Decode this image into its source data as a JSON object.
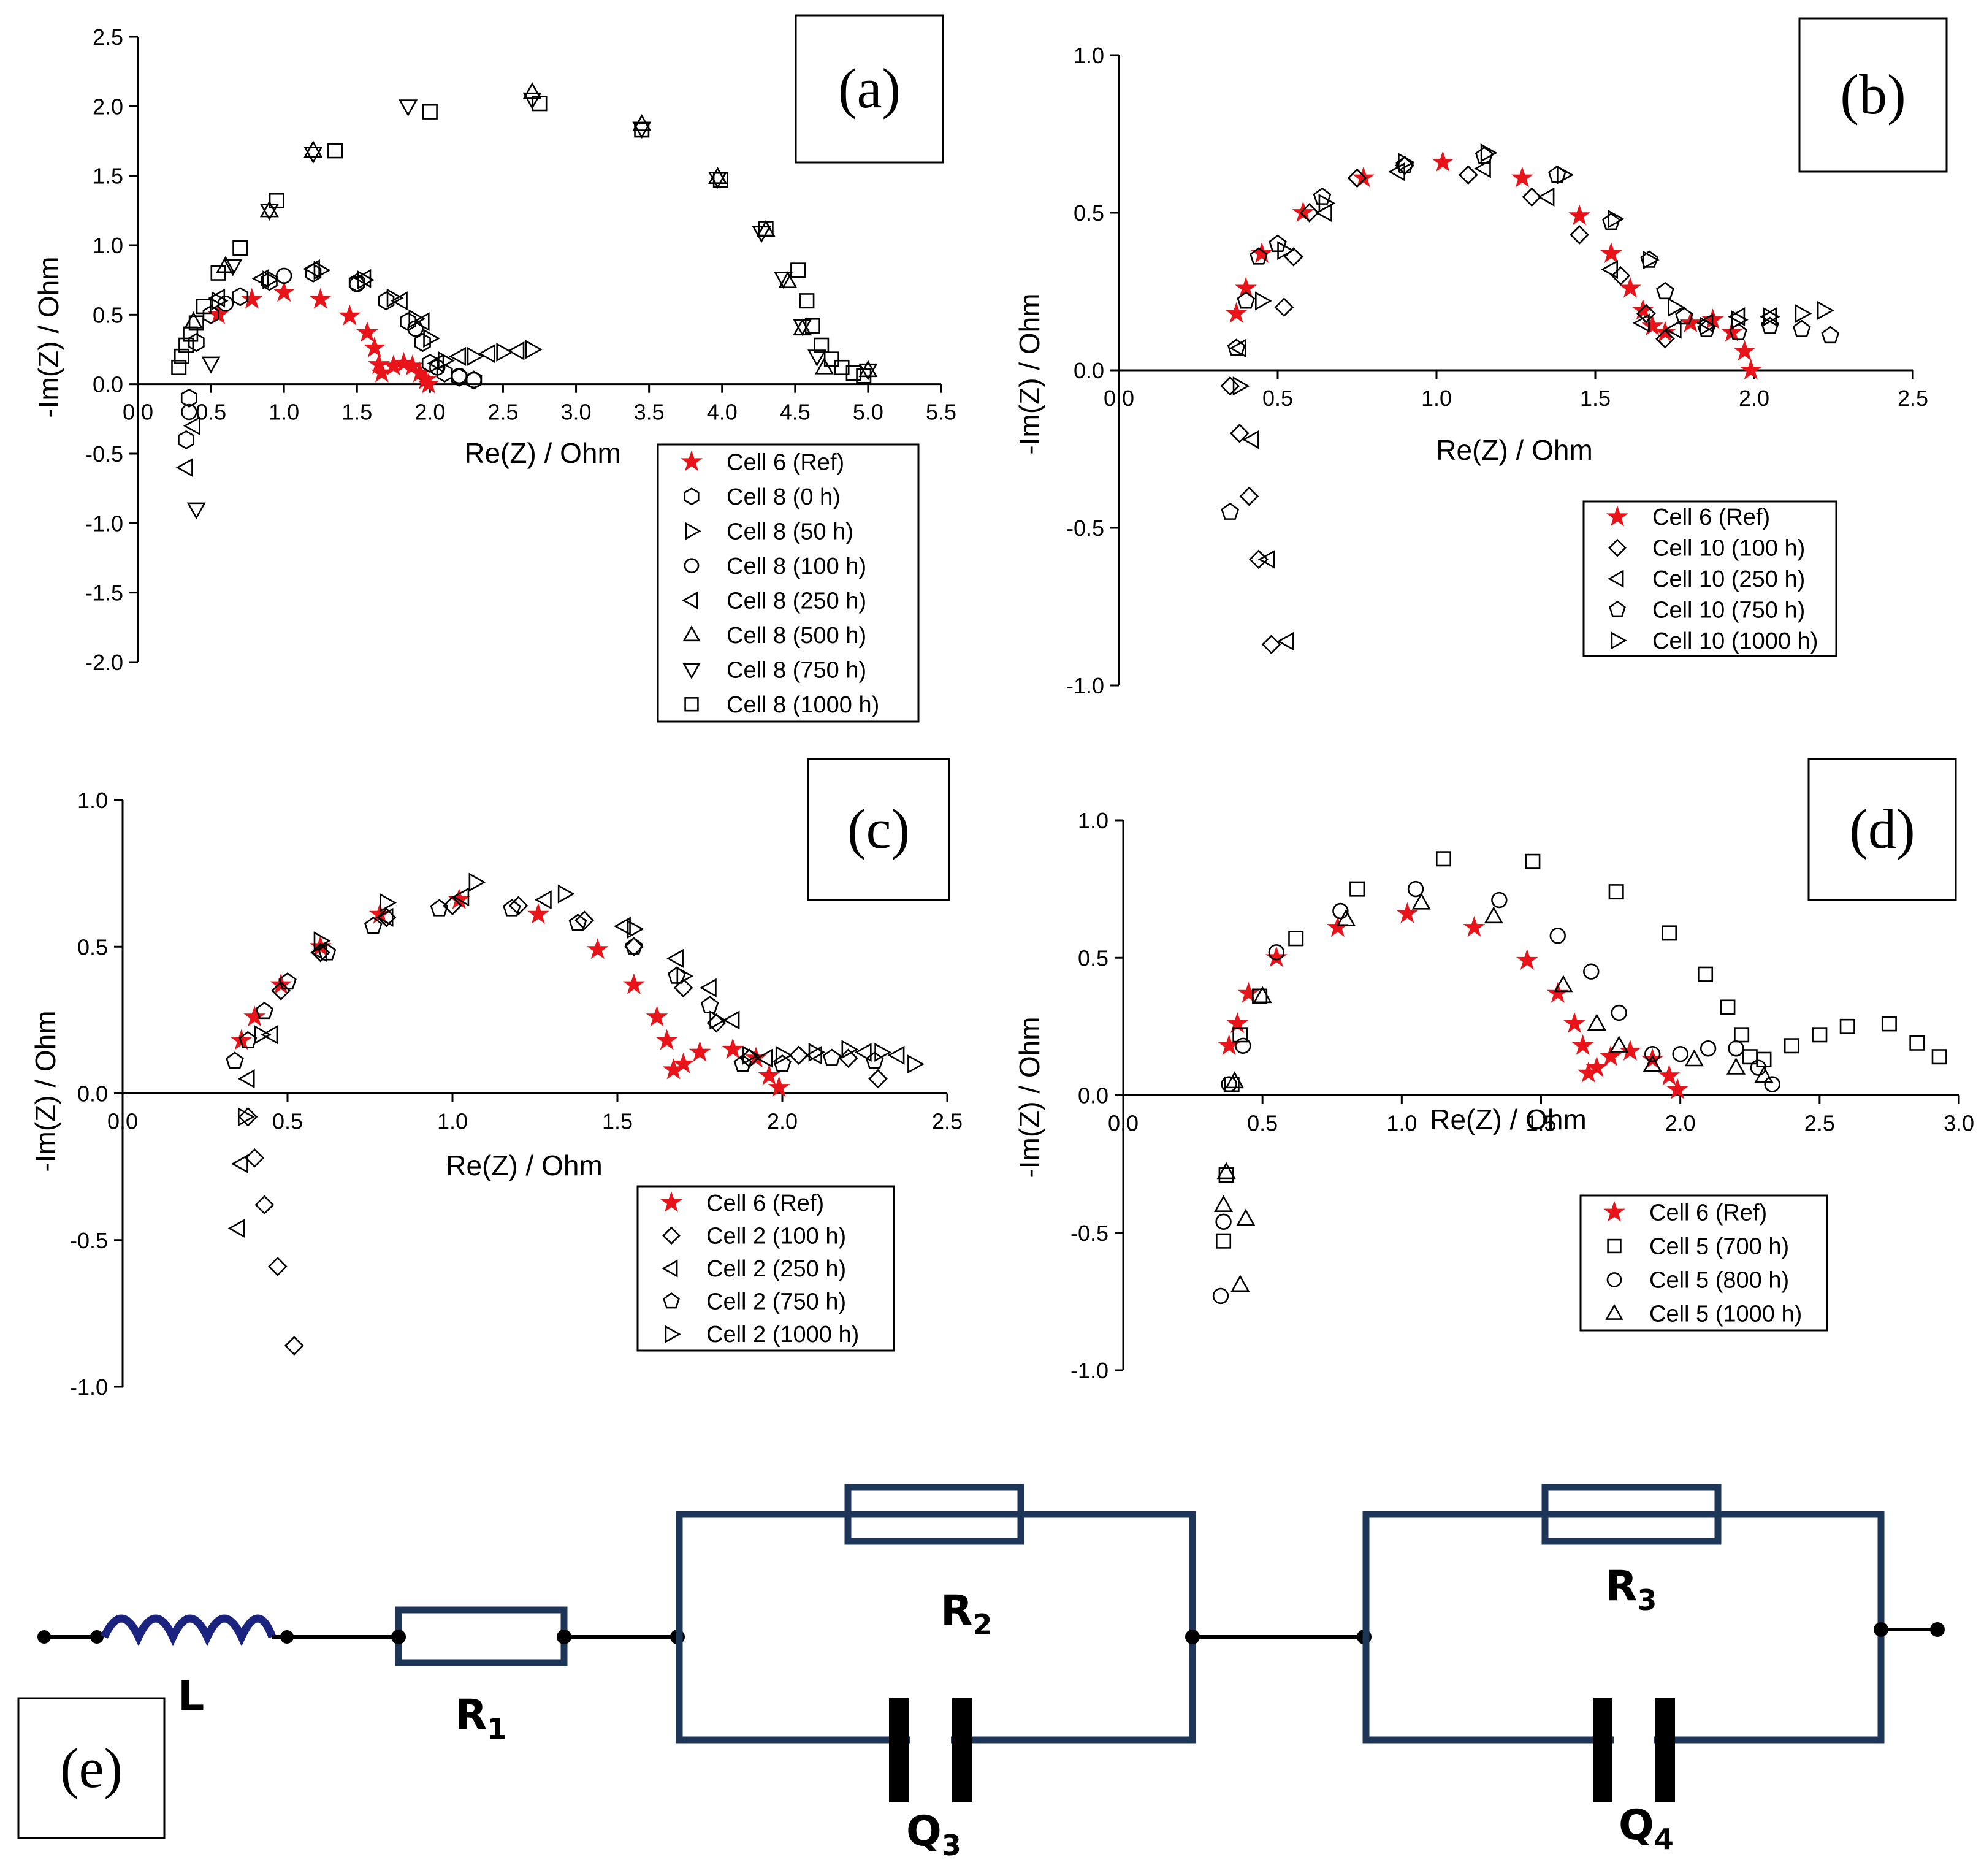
{
  "panels": {
    "a": {
      "label": "(a)",
      "xlabel": "Re(Z) / Ohm",
      "ylabel": "-Im(Z) / Ohm",
      "xticks": [
        "0.0",
        "0.5",
        "1.0",
        "1.5",
        "2.0",
        "2.5",
        "3.0",
        "3.5",
        "4.0",
        "4.5",
        "5.0",
        "5.5"
      ],
      "yticks": [
        "2.5",
        "2.0",
        "1.5",
        "1.0",
        "0.5",
        "0.0",
        "-0.5",
        "-1.0",
        "-1.5",
        "-2.0"
      ],
      "legend": [
        "Cell 6 (Ref)",
        "Cell 8 (0 h)",
        "Cell 8 (50 h)",
        "Cell 8 (100 h)",
        "Cell 8 (250 h)",
        "Cell 8 (500 h)",
        "Cell 8 (750 h)",
        "Cell 8 (1000 h)"
      ]
    },
    "b": {
      "label": "(b)",
      "xlabel": "Re(Z) / Ohm",
      "ylabel": "-Im(Z) / Ohm",
      "xticks": [
        "0.0",
        "0.5",
        "1.0",
        "1.5",
        "2.0",
        "2.5"
      ],
      "yticks": [
        "1.0",
        "0.5",
        "0.0",
        "-0.5",
        "-1.0"
      ],
      "legend": [
        "Cell 6 (Ref)",
        "Cell 10 (100 h)",
        "Cell 10 (250 h)",
        "Cell 10 (750 h)",
        "Cell 10 (1000 h)"
      ]
    },
    "c": {
      "label": "(c)",
      "xlabel": "Re(Z) / Ohm",
      "ylabel": "-Im(Z) / Ohm",
      "xticks": [
        "0.0",
        "0.5",
        "1.0",
        "1.5",
        "2.0",
        "2.5"
      ],
      "yticks": [
        "1.0",
        "0.5",
        "0.0",
        "-0.5",
        "-1.0"
      ],
      "legend": [
        "Cell 6 (Ref)",
        "Cell 2 (100 h)",
        "Cell 2 (250 h)",
        "Cell 2 (750 h)",
        "Cell 2 (1000 h)"
      ]
    },
    "d": {
      "label": "(d)",
      "xlabel": "Re(Z) / Ohm",
      "ylabel": "-Im(Z) / Ohm",
      "xticks": [
        "0.0",
        "0.5",
        "1.0",
        "1.5",
        "2.0",
        "2.5",
        "3.0"
      ],
      "yticks": [
        "1.0",
        "0.5",
        "0.0",
        "-0.5",
        "-1.0"
      ],
      "legend": [
        "Cell 6 (Ref)",
        "Cell 5 (700 h)",
        "Cell 5 (800 h)",
        "Cell 5 (1000 h)"
      ]
    }
  },
  "circuit": {
    "label": "(e)",
    "L": "L",
    "R": "R",
    "Q": "Q",
    "sub1": "1",
    "sub2": "2",
    "sub3": "3",
    "sub4": "4"
  },
  "colors": {
    "reference": "#e8141a",
    "circuit_box": "#1d3557"
  },
  "chart_data": [
    {
      "panel": "a",
      "type": "scatter",
      "xlabel": "Re(Z) / Ohm",
      "ylabel": "-Im(Z) / Ohm",
      "xlim": [
        0,
        5.5
      ],
      "ylim": [
        -2.0,
        2.5
      ],
      "series": [
        {
          "name": "Cell 6 (Ref)",
          "marker": "star",
          "x": [
            0.55,
            0.78,
            1.0,
            1.25,
            1.45,
            1.57,
            1.62,
            1.65,
            1.67,
            1.75,
            1.82,
            1.88,
            1.93,
            1.97,
            1.99
          ],
          "y": [
            0.5,
            0.61,
            0.66,
            0.61,
            0.49,
            0.37,
            0.26,
            0.14,
            0.08,
            0.13,
            0.15,
            0.13,
            0.08,
            0.03,
            0.0
          ]
        },
        {
          "name": "Cell 8 (0 h)",
          "marker": "hexagon",
          "x": [
            0.33,
            0.35,
            0.4,
            0.5,
            0.7,
            0.9,
            1.2,
            1.5,
            1.7,
            1.85,
            1.95,
            2.0,
            2.1,
            2.2,
            2.3
          ],
          "y": [
            -0.4,
            -0.1,
            0.3,
            0.5,
            0.63,
            0.74,
            0.8,
            0.73,
            0.6,
            0.45,
            0.3,
            0.15,
            0.08,
            0.05,
            0.03
          ]
        },
        {
          "name": "Cell 8 (50 h)",
          "marker": "tri-right",
          "x": [
            0.55,
            0.9,
            1.25,
            1.55,
            1.75,
            1.9,
            2.0,
            2.1,
            2.3,
            2.5,
            2.7
          ],
          "y": [
            0.6,
            0.75,
            0.82,
            0.75,
            0.62,
            0.47,
            0.33,
            0.17,
            0.2,
            0.23,
            0.25
          ]
        },
        {
          "name": "Cell 8 (100 h)",
          "marker": "circle",
          "x": [
            0.35,
            0.6,
            1.0,
            1.5,
            1.9,
            2.05,
            2.2,
            2.3
          ],
          "y": [
            -0.2,
            0.58,
            0.78,
            0.72,
            0.4,
            0.12,
            0.06,
            0.03
          ]
        },
        {
          "name": "Cell 8 (250 h)",
          "marker": "tri-left",
          "x": [
            0.33,
            0.38,
            0.55,
            0.85,
            1.2,
            1.55,
            1.8,
            1.95,
            2.05,
            2.2,
            2.4,
            2.6
          ],
          "y": [
            -0.6,
            -0.3,
            0.62,
            0.76,
            0.83,
            0.76,
            0.6,
            0.45,
            0.15,
            0.2,
            0.22,
            0.24
          ]
        },
        {
          "name": "Cell 8 (500 h)",
          "marker": "triangle",
          "x": [
            0.38,
            0.6,
            0.9,
            1.2,
            2.7,
            3.45,
            3.97,
            4.3,
            4.45,
            4.55,
            4.7,
            5.0
          ],
          "y": [
            0.45,
            0.85,
            1.25,
            1.68,
            2.1,
            1.87,
            1.49,
            1.11,
            0.74,
            0.4,
            0.12,
            0.1
          ]
        },
        {
          "name": "Cell 8 (750 h)",
          "marker": "tri-down",
          "x": [
            0.4,
            0.5,
            0.65,
            0.9,
            1.2,
            1.85,
            2.7,
            3.45,
            3.97,
            4.27,
            4.42,
            4.55,
            4.65,
            5.0
          ],
          "y": [
            -0.9,
            0.15,
            0.85,
            1.25,
            1.66,
            2.0,
            2.05,
            1.84,
            1.48,
            1.09,
            0.76,
            0.42,
            0.2,
            0.1
          ]
        },
        {
          "name": "Cell 8 (1000 h)",
          "marker": "square",
          "x": [
            0.28,
            0.3,
            0.33,
            0.36,
            0.4,
            0.45,
            0.55,
            0.7,
            0.95,
            1.35,
            2.0,
            2.75,
            3.45,
            3.99,
            4.3,
            4.52,
            4.58,
            4.62,
            4.68,
            4.75,
            4.82,
            4.9,
            4.97
          ],
          "y": [
            0.12,
            0.2,
            0.28,
            0.36,
            0.44,
            0.56,
            0.8,
            0.98,
            1.32,
            1.68,
            1.96,
            2.02,
            1.83,
            1.47,
            1.12,
            0.82,
            0.6,
            0.42,
            0.28,
            0.18,
            0.12,
            0.08,
            0.06
          ]
        }
      ]
    },
    {
      "panel": "b",
      "type": "scatter",
      "xlabel": "Re(Z) / Ohm",
      "ylabel": "-Im(Z) / Ohm",
      "xlim": [
        0,
        2.5
      ],
      "ylim": [
        -1.0,
        1.0
      ],
      "series": [
        {
          "name": "Cell 6 (Ref)",
          "marker": "star",
          "x": [
            0.37,
            0.4,
            0.45,
            0.58,
            0.77,
            1.02,
            1.27,
            1.45,
            1.55,
            1.61,
            1.65,
            1.68,
            1.72,
            1.8,
            1.87,
            1.93,
            1.97,
            1.99
          ],
          "y": [
            0.18,
            0.26,
            0.37,
            0.5,
            0.61,
            0.66,
            0.61,
            0.49,
            0.37,
            0.26,
            0.19,
            0.14,
            0.12,
            0.15,
            0.16,
            0.12,
            0.06,
            0.0
          ]
        },
        {
          "name": "Cell 10 (100 h)",
          "marker": "diamond",
          "x": [
            0.35,
            0.38,
            0.41,
            0.44,
            0.48,
            0.52,
            0.55,
            0.6,
            0.75,
            0.9,
            1.1,
            1.3,
            1.45,
            1.58,
            1.66,
            1.72
          ],
          "y": [
            -0.05,
            -0.2,
            -0.4,
            -0.6,
            -0.87,
            0.2,
            0.36,
            0.5,
            0.61,
            0.65,
            0.62,
            0.55,
            0.43,
            0.3,
            0.18,
            0.1
          ]
        },
        {
          "name": "Cell 10 (250 h)",
          "marker": "tri-left",
          "x": [
            0.38,
            0.42,
            0.47,
            0.53,
            0.65,
            0.88,
            1.15,
            1.35,
            1.55,
            1.65,
            1.75,
            1.85,
            1.95,
            2.05
          ],
          "y": [
            0.07,
            -0.22,
            -0.6,
            -0.86,
            0.5,
            0.63,
            0.64,
            0.55,
            0.32,
            0.15,
            0.13,
            0.15,
            0.17,
            0.17
          ]
        },
        {
          "name": "Cell 10 (750 h)",
          "marker": "pentagon",
          "x": [
            0.35,
            0.37,
            0.4,
            0.44,
            0.5,
            0.64,
            0.9,
            1.15,
            1.38,
            1.55,
            1.67,
            1.72,
            1.78,
            1.85,
            1.95,
            2.05,
            2.15,
            2.24
          ],
          "y": [
            -0.45,
            0.07,
            0.22,
            0.36,
            0.4,
            0.55,
            0.65,
            0.68,
            0.62,
            0.47,
            0.35,
            0.25,
            0.17,
            0.13,
            0.12,
            0.14,
            0.13,
            0.11
          ]
        },
        {
          "name": "Cell 10 (1000 h)",
          "marker": "tri-right",
          "x": [
            0.38,
            0.45,
            0.52,
            0.65,
            0.9,
            1.16,
            1.4,
            1.56,
            1.67,
            1.75,
            1.85,
            1.95,
            2.05,
            2.15,
            2.22
          ],
          "y": [
            -0.05,
            0.22,
            0.38,
            0.53,
            0.66,
            0.69,
            0.62,
            0.48,
            0.35,
            0.2,
            0.14,
            0.16,
            0.17,
            0.18,
            0.19
          ]
        }
      ]
    },
    {
      "panel": "c",
      "type": "scatter",
      "xlabel": "Re(Z) / Ohm",
      "ylabel": "-Im(Z) / Ohm",
      "xlim": [
        0,
        2.5
      ],
      "ylim": [
        -1.0,
        1.0
      ],
      "series": [
        {
          "name": "Cell 6 (Ref)",
          "marker": "star",
          "x": [
            0.36,
            0.4,
            0.48,
            0.6,
            0.78,
            1.02,
            1.26,
            1.44,
            1.55,
            1.62,
            1.65,
            1.67,
            1.7,
            1.75,
            1.85,
            1.92,
            1.96,
            1.99
          ],
          "y": [
            0.18,
            0.26,
            0.37,
            0.5,
            0.61,
            0.66,
            0.61,
            0.49,
            0.37,
            0.26,
            0.18,
            0.08,
            0.1,
            0.14,
            0.15,
            0.12,
            0.06,
            0.02
          ]
        },
        {
          "name": "Cell 2 (100 h)",
          "marker": "diamond",
          "x": [
            0.38,
            0.4,
            0.43,
            0.47,
            0.52,
            0.48,
            0.6,
            0.8,
            1.0,
            1.2,
            1.4,
            1.55,
            1.7,
            1.8,
            1.9,
            2.05,
            2.2,
            2.29
          ],
          "y": [
            -0.08,
            -0.22,
            -0.38,
            -0.59,
            -0.86,
            0.35,
            0.48,
            0.6,
            0.64,
            0.64,
            0.59,
            0.5,
            0.36,
            0.24,
            0.12,
            0.13,
            0.12,
            0.05
          ]
        },
        {
          "name": "Cell 2 (250 h)",
          "marker": "tri-left",
          "x": [
            0.35,
            0.36,
            0.38,
            0.45,
            0.6,
            0.8,
            1.03,
            1.28,
            1.52,
            1.68,
            1.78,
            1.85,
            1.95,
            2.1,
            2.25,
            2.35
          ],
          "y": [
            -0.46,
            -0.24,
            0.05,
            0.2,
            0.48,
            0.6,
            0.67,
            0.66,
            0.57,
            0.46,
            0.36,
            0.25,
            0.12,
            0.13,
            0.14,
            0.13
          ]
        },
        {
          "name": "Cell 2 (750 h)",
          "marker": "pentagon",
          "x": [
            0.34,
            0.38,
            0.43,
            0.5,
            0.62,
            0.76,
            0.96,
            1.18,
            1.38,
            1.55,
            1.68,
            1.78,
            1.88,
            2.0,
            2.15,
            2.28
          ],
          "y": [
            0.11,
            0.18,
            0.28,
            0.38,
            0.48,
            0.57,
            0.63,
            0.63,
            0.58,
            0.5,
            0.4,
            0.3,
            0.1,
            0.1,
            0.12,
            0.11
          ]
        },
        {
          "name": "Cell 2 (1000 h)",
          "marker": "tri-right",
          "x": [
            0.37,
            0.42,
            0.6,
            0.8,
            1.07,
            1.34,
            1.55,
            1.7,
            1.8,
            1.9,
            2.0,
            2.1,
            2.2,
            2.3,
            2.4
          ],
          "y": [
            -0.08,
            0.2,
            0.52,
            0.65,
            0.72,
            0.68,
            0.56,
            0.4,
            0.25,
            0.13,
            0.13,
            0.14,
            0.15,
            0.14,
            0.1
          ]
        }
      ]
    },
    {
      "panel": "d",
      "type": "scatter",
      "xlabel": "Re(Z) / Ohm",
      "ylabel": "-Im(Z) / Ohm",
      "xlim": [
        0,
        3.0
      ],
      "ylim": [
        -1.0,
        1.0
      ],
      "series": [
        {
          "name": "Cell 6 (Ref)",
          "marker": "star",
          "x": [
            0.38,
            0.41,
            0.45,
            0.55,
            0.77,
            1.02,
            1.26,
            1.45,
            1.56,
            1.62,
            1.65,
            1.67,
            1.7,
            1.75,
            1.82,
            1.9,
            1.96,
            1.99
          ],
          "y": [
            0.18,
            0.26,
            0.37,
            0.5,
            0.61,
            0.66,
            0.61,
            0.49,
            0.37,
            0.26,
            0.18,
            0.08,
            0.1,
            0.14,
            0.16,
            0.13,
            0.07,
            0.02
          ]
        },
        {
          "name": "Cell 5 (700 h)",
          "marker": "square",
          "x": [
            0.36,
            0.37,
            0.39,
            0.42,
            0.49,
            0.62,
            0.84,
            1.15,
            1.47,
            1.77,
            1.96,
            2.09,
            2.17,
            2.22,
            2.25,
            2.3,
            2.4,
            2.5,
            2.6,
            2.75,
            2.85,
            2.93
          ],
          "y": [
            -0.53,
            -0.29,
            0.04,
            0.22,
            0.36,
            0.57,
            0.75,
            0.86,
            0.85,
            0.74,
            0.59,
            0.44,
            0.32,
            0.22,
            0.14,
            0.13,
            0.18,
            0.22,
            0.25,
            0.26,
            0.19,
            0.14
          ]
        },
        {
          "name": "Cell 5 (800 h)",
          "marker": "circle",
          "x": [
            0.35,
            0.36,
            0.38,
            0.43,
            0.55,
            0.78,
            1.05,
            1.35,
            1.56,
            1.68,
            1.78,
            1.9,
            2.0,
            2.1,
            2.2,
            2.28,
            2.33
          ],
          "y": [
            -0.73,
            -0.46,
            0.04,
            0.18,
            0.52,
            0.67,
            0.75,
            0.71,
            0.58,
            0.45,
            0.3,
            0.15,
            0.15,
            0.17,
            0.17,
            0.1,
            0.04
          ]
        },
        {
          "name": "Cell 5 (1000 h)",
          "marker": "triangle",
          "x": [
            0.36,
            0.37,
            0.4,
            0.42,
            0.44,
            0.5,
            0.8,
            1.07,
            1.33,
            1.58,
            1.7,
            1.78,
            1.9,
            2.05,
            2.2,
            2.3
          ],
          "y": [
            -0.4,
            -0.28,
            0.05,
            -0.69,
            -0.45,
            0.36,
            0.64,
            0.7,
            0.65,
            0.4,
            0.26,
            0.18,
            0.11,
            0.13,
            0.1,
            0.07
          ]
        }
      ]
    }
  ]
}
